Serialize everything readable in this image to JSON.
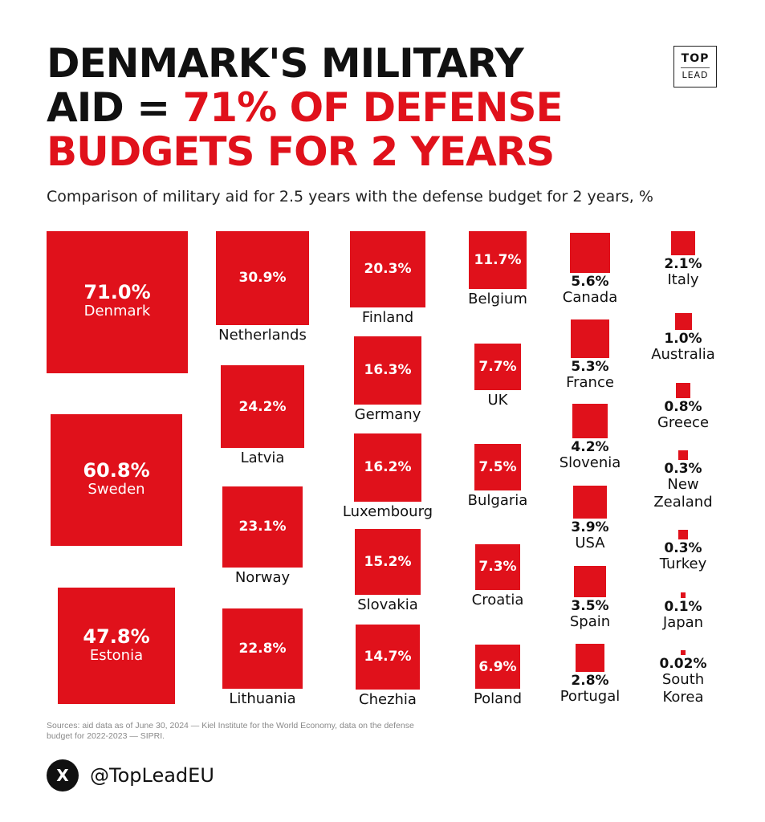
{
  "header": {
    "title_line1": "DENMARK'S MILITARY",
    "title_line2_black": "AID = ",
    "title_line2_red": "71% OF DEFENSE",
    "title_line3": "BUDGETS FOR 2 YEARS",
    "subtitle": "Comparison of military aid for 2.5 years with the defense budget for 2 years, %"
  },
  "logo": {
    "line1": "TOP",
    "line2": "LEAD"
  },
  "footer": {
    "sources": "Sources: aid data as of June 30, 2024 — Kiel Institute for the World Economy, data on the defense budget for 2022-2023 — SIPRI.",
    "social_icon": "x-logo-icon",
    "handle": "@TopLeadEU"
  },
  "colors": {
    "accent": "#e0111b",
    "text": "#111111"
  },
  "chart_data": {
    "type": "proportional-squares",
    "unit": "%",
    "items": [
      {
        "label": "Denmark",
        "value": 71.0,
        "value_label": "71.0%"
      },
      {
        "label": "Sweden",
        "value": 60.8,
        "value_label": "60.8%"
      },
      {
        "label": "Estonia",
        "value": 47.8,
        "value_label": "47.8%"
      },
      {
        "label": "Netherlands",
        "value": 30.9,
        "value_label": "30.9%"
      },
      {
        "label": "Latvia",
        "value": 24.2,
        "value_label": "24.2%"
      },
      {
        "label": "Norway",
        "value": 23.1,
        "value_label": "23.1%"
      },
      {
        "label": "Lithuania",
        "value": 22.8,
        "value_label": "22.8%"
      },
      {
        "label": "Finland",
        "value": 20.3,
        "value_label": "20.3%"
      },
      {
        "label": "Germany",
        "value": 16.3,
        "value_label": "16.3%"
      },
      {
        "label": "Luxembourg",
        "value": 16.2,
        "value_label": "16.2%"
      },
      {
        "label": "Slovakia",
        "value": 15.2,
        "value_label": "15.2%"
      },
      {
        "label": "Chezhia",
        "value": 14.7,
        "value_label": "14.7%"
      },
      {
        "label": "Belgium",
        "value": 11.7,
        "value_label": "11.7%"
      },
      {
        "label": "UK",
        "value": 7.7,
        "value_label": "7.7%"
      },
      {
        "label": "Bulgaria",
        "value": 7.5,
        "value_label": "7.5%"
      },
      {
        "label": "Croatia",
        "value": 7.3,
        "value_label": "7.3%"
      },
      {
        "label": "Poland",
        "value": 6.9,
        "value_label": "6.9%"
      },
      {
        "label": "Canada",
        "value": 5.6,
        "value_label": "5.6%"
      },
      {
        "label": "France",
        "value": 5.3,
        "value_label": "5.3%"
      },
      {
        "label": "Slovenia",
        "value": 4.2,
        "value_label": "4.2%"
      },
      {
        "label": "USA",
        "value": 3.9,
        "value_label": "3.9%"
      },
      {
        "label": "Spain",
        "value": 3.5,
        "value_label": "3.5%"
      },
      {
        "label": "Portugal",
        "value": 2.8,
        "value_label": "2.8%"
      },
      {
        "label": "Italy",
        "value": 2.1,
        "value_label": "2.1%"
      },
      {
        "label": "Australia",
        "value": 1.0,
        "value_label": "1.0%"
      },
      {
        "label": "Greece",
        "value": 0.8,
        "value_label": "0.8%"
      },
      {
        "label": "New Zealand",
        "value": 0.3,
        "value_label": "0.3%"
      },
      {
        "label": "Turkey",
        "value": 0.3,
        "value_label": "0.3%"
      },
      {
        "label": "Japan",
        "value": 0.1,
        "value_label": "0.1%"
      },
      {
        "label": "South Korea",
        "value": 0.02,
        "value_label": "0.02%"
      }
    ]
  }
}
